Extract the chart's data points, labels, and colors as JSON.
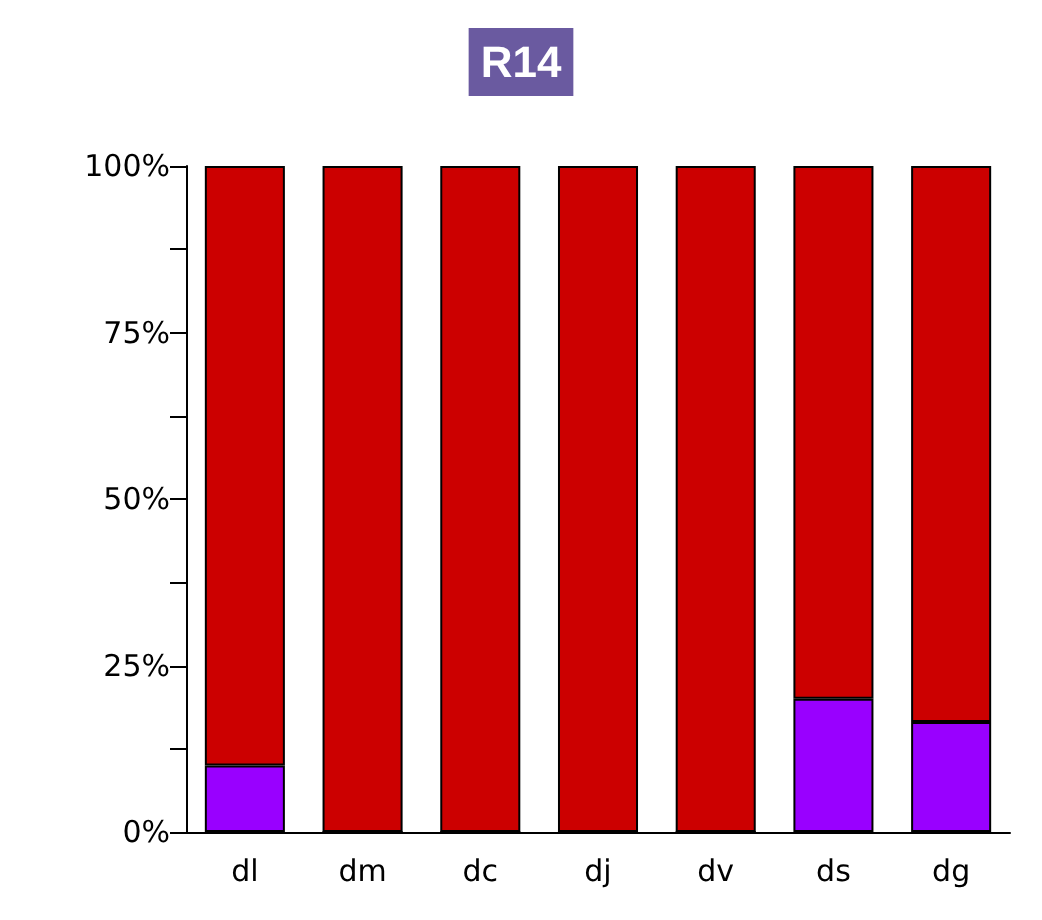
{
  "chart_data": {
    "type": "bar",
    "title": "R14",
    "stacked": true,
    "categories": [
      "dl",
      "dm",
      "dc",
      "dj",
      "dv",
      "ds",
      "dg"
    ],
    "series": [
      {
        "color": "#9900ff",
        "values": [
          10,
          0,
          0,
          0,
          0,
          20,
          16.5
        ]
      },
      {
        "color": "#cc0000",
        "values": [
          90,
          100,
          100,
          100,
          100,
          80,
          83.5
        ]
      }
    ],
    "ylim": [
      0,
      100
    ],
    "yticks": [
      {
        "value": 0,
        "label": "0%"
      },
      {
        "value": 12.5,
        "label": null
      },
      {
        "value": 25,
        "label": "25%"
      },
      {
        "value": 37.5,
        "label": null
      },
      {
        "value": 50,
        "label": "50%"
      },
      {
        "value": 62.5,
        "label": null
      },
      {
        "value": 75,
        "label": "75%"
      },
      {
        "value": 87.5,
        "label": null
      },
      {
        "value": 100,
        "label": "100%"
      }
    ],
    "grid": false
  }
}
